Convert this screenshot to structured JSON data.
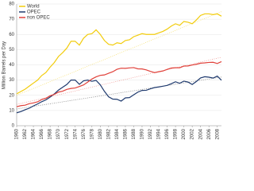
{
  "chart_data": {
    "type": "line",
    "y_label": "Million Barrels per Day",
    "x": [
      1960,
      1961,
      1962,
      1963,
      1964,
      1965,
      1966,
      1967,
      1968,
      1969,
      1970,
      1971,
      1972,
      1973,
      1974,
      1975,
      1976,
      1977,
      1978,
      1979,
      1980,
      1981,
      1982,
      1983,
      1984,
      1985,
      1986,
      1987,
      1988,
      1989,
      1990,
      1991,
      1992,
      1993,
      1994,
      1995,
      1996,
      1997,
      1998,
      1999,
      2000,
      2001,
      2002,
      2003,
      2004,
      2005,
      2006,
      2007,
      2008,
      2009
    ],
    "series": [
      {
        "name": "World",
        "color": "#f2cc0c",
        "values": [
          21,
          22.5,
          24,
          26,
          28,
          30,
          33,
          35,
          38.5,
          41.5,
          45.5,
          48,
          51,
          55.5,
          55.5,
          53,
          57.5,
          60,
          60.5,
          63,
          60,
          56,
          53.5,
          53,
          54.5,
          54,
          56,
          56.5,
          58.5,
          59.5,
          60.5,
          60,
          60,
          60,
          61,
          62,
          63.5,
          65.5,
          67,
          66,
          68.5,
          68,
          67,
          69.5,
          72.5,
          73.5,
          73.5,
          73,
          73.5,
          72
        ]
      },
      {
        "name": "OPEC",
        "color": "#1f3a6e",
        "values": [
          8.5,
          9.3,
          10.5,
          11.5,
          13,
          14.3,
          15.8,
          17,
          18.8,
          20.9,
          23.4,
          25.3,
          27.1,
          30,
          30,
          27.2,
          29.5,
          30,
          29.2,
          29.8,
          26.9,
          22.6,
          19,
          17.5,
          17.4,
          16.2,
          18.3,
          18.5,
          20.3,
          22.1,
          23.2,
          23.3,
          24.3,
          25.1,
          25.5,
          26,
          26.5,
          27.6,
          28.9,
          27.9,
          29.3,
          28.7,
          27.1,
          29.1,
          31.4,
          32.2,
          31.9,
          31.3,
          32.6,
          29.9
        ]
      },
      {
        "name": "non OPEC",
        "color": "#e0413a",
        "values": [
          12.5,
          13.2,
          13.5,
          14.5,
          15,
          15.7,
          17.2,
          18,
          19.7,
          20.6,
          22.1,
          22.7,
          23.9,
          24.5,
          24.8,
          25.8,
          26.8,
          28.7,
          30.7,
          32.1,
          33.1,
          33.4,
          34.5,
          35.5,
          37.1,
          37.8,
          37.7,
          38,
          38.2,
          37.4,
          37.3,
          36.7,
          35.7,
          34.9,
          35.5,
          36,
          37,
          37.9,
          38.1,
          38.1,
          39.2,
          39.3,
          39.9,
          40.4,
          41.1,
          41.3,
          41.6,
          41.7,
          40.9,
          42.1
        ]
      }
    ],
    "trendlines": [
      {
        "color": "#f7e27a",
        "values": [
          20,
          75
        ]
      },
      {
        "color": "#888888",
        "values": [
          11,
          32
        ]
      },
      {
        "color": "#f0a09c",
        "values": [
          14,
          45
        ]
      }
    ],
    "xlim": [
      1960,
      2009
    ],
    "xticks": [
      1960,
      1962,
      1964,
      1966,
      1968,
      1970,
      1972,
      1974,
      1976,
      1978,
      1980,
      1982,
      1984,
      1986,
      1988,
      1990,
      1992,
      1994,
      1996,
      1998,
      2000,
      2002,
      2004,
      2006,
      2008
    ],
    "ylim": [
      0,
      80
    ],
    "yticks": [
      0,
      10,
      20,
      30,
      40,
      50,
      60,
      70,
      80
    ],
    "grid": true,
    "legend": "top-left"
  }
}
